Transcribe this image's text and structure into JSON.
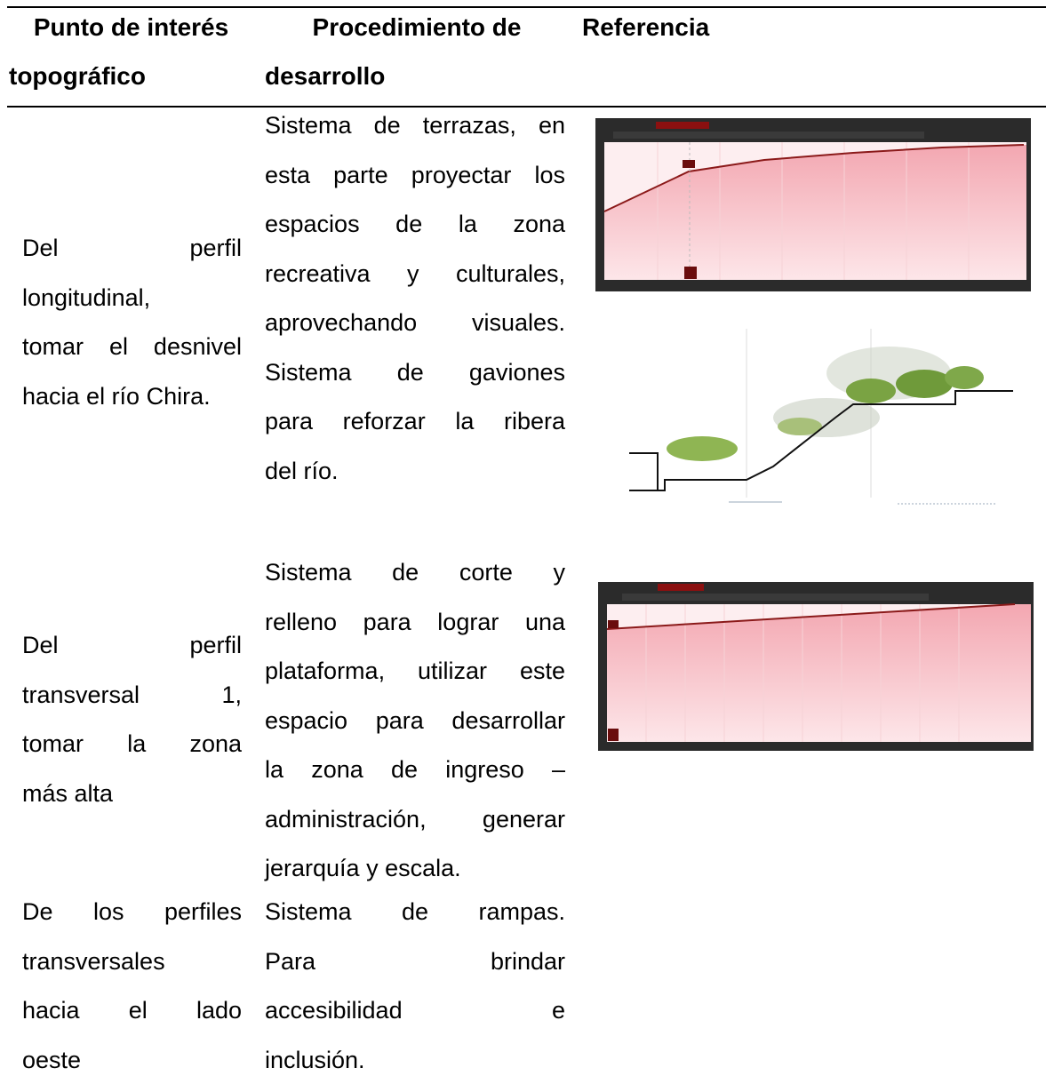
{
  "table": {
    "header": [
      [
        "Punto de interés",
        "topográfico"
      ],
      [
        "Procedimiento de",
        "desarrollo"
      ],
      [
        "Referencia"
      ]
    ],
    "rows": [
      [
        [
          "Del perfil",
          "longitudinal,",
          "tomar el desnivel",
          "hacia el río Chira."
        ],
        [
          "Sistema de terrazas, en",
          "esta parte proyectar los",
          "espacios de la zona",
          "recreativa y culturales,",
          "aprovechando visuales.",
          "Sistema de gaviones",
          "para reforzar la ribera",
          "del río."
        ]
      ],
      [
        [
          "Del perfil",
          "transversal 1,",
          "tomar la zona",
          "más alta"
        ],
        [
          "Sistema de corte y",
          "relleno para lograr una",
          "plataforma, utilizar este",
          "espacio para desarrollar",
          "la zona de ingreso –",
          "administración, generar",
          "jerarquía y escala."
        ]
      ],
      [
        [
          "De los perfiles",
          "transversales",
          "hacia el lado",
          "oeste"
        ],
        [
          "Sistema de rampas.",
          "Para brindar",
          "accesibilidad e",
          "inclusión."
        ]
      ]
    ]
  }
}
